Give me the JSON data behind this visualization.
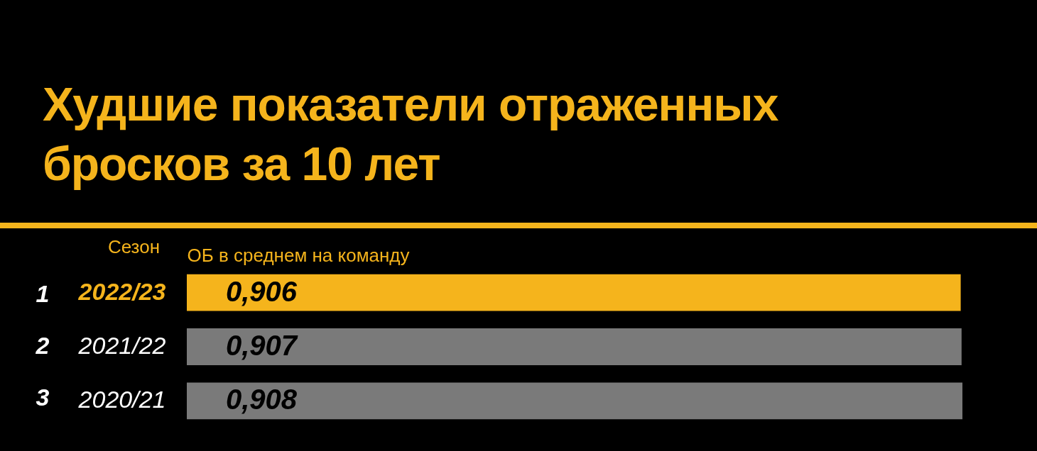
{
  "chart_data": {
    "type": "bar",
    "orientation": "horizontal",
    "title": "Худшие показатели отраженных бросков за 10 лет",
    "ylabel": "Сезон",
    "xlabel": "ОБ в среднем на команду",
    "categories": [
      "2022/23",
      "2021/22",
      "2020/21"
    ],
    "values": [
      0.906,
      0.907,
      0.908
    ],
    "value_labels": [
      "0,906",
      "0,907",
      "0,908"
    ],
    "colors": [
      "#f5b41c",
      "#7a7a7a",
      "#7a7a7a"
    ],
    "tick_labels": "y",
    "annotations": [
      "1",
      "2",
      "3"
    ]
  }
}
